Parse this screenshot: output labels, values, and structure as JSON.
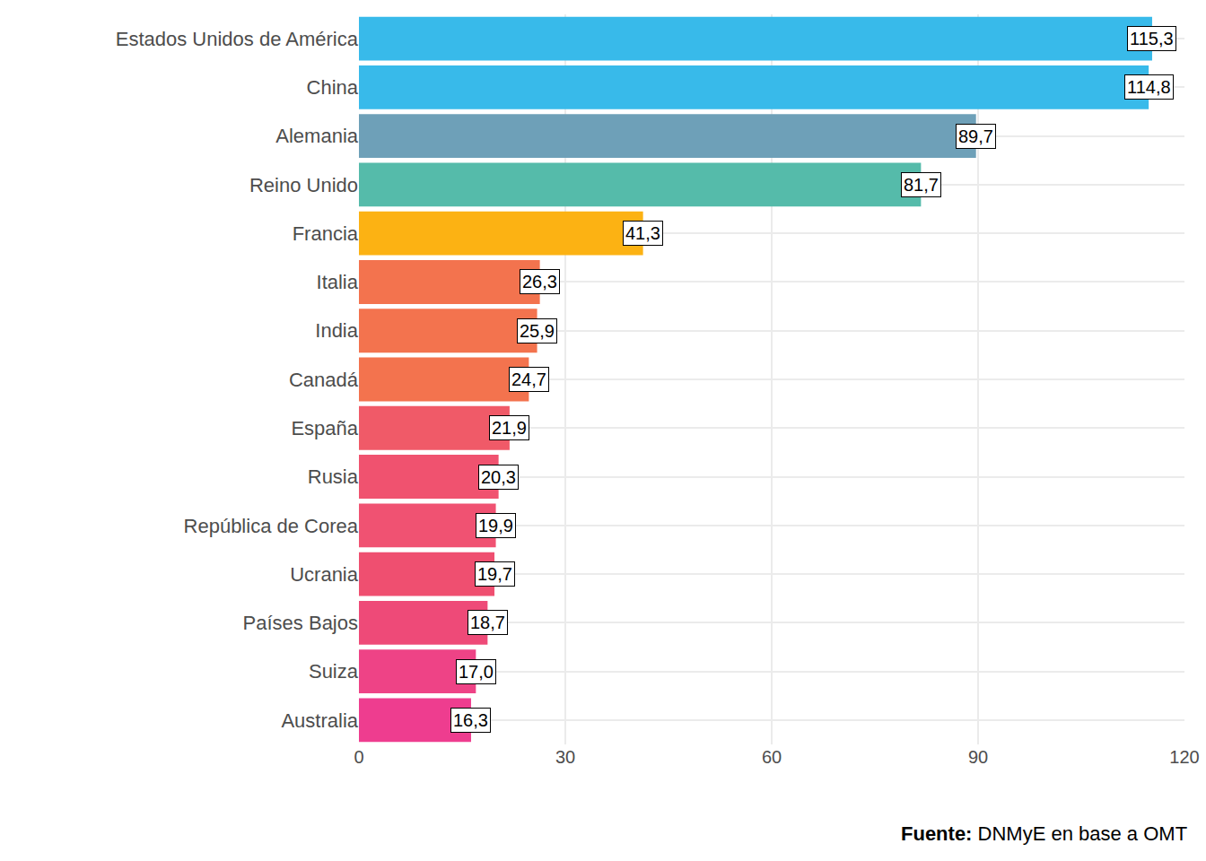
{
  "chart_data": {
    "type": "bar",
    "orientation": "horizontal",
    "categories": [
      "Estados Unidos de América",
      "China",
      "Alemania",
      "Reino Unido",
      "Francia",
      "Italia",
      "India",
      "Canadá",
      "España",
      "Rusia",
      "República de Corea",
      "Ucrania",
      "Países Bajos",
      "Suiza",
      "Australia"
    ],
    "values": [
      115.3,
      114.8,
      89.7,
      81.7,
      41.3,
      26.3,
      25.9,
      24.7,
      21.9,
      20.3,
      19.9,
      19.7,
      18.7,
      17.0,
      16.3
    ],
    "value_labels": [
      "115,3",
      "114,8",
      "89,7",
      "81,7",
      "41,3",
      "26,3",
      "25,9",
      "24,7",
      "21,9",
      "20,3",
      "19,9",
      "19,7",
      "18,7",
      "17,0",
      "16,3"
    ],
    "colors": [
      "#38BAEA",
      "#38BAEA",
      "#6EA0B8",
      "#55BBAA",
      "#FCB213",
      "#F3734E",
      "#F3734E",
      "#F3734E",
      "#F05A68",
      "#F0526F",
      "#F05272",
      "#EF4F70",
      "#EE4A78",
      "#EE4386",
      "#EE3D8F"
    ],
    "xlim": [
      0,
      120
    ],
    "xticks": [
      0,
      30,
      60,
      90,
      120
    ],
    "grid": true,
    "data_labels": true,
    "source_label": "Fuente:",
    "source": "DNMyE en base a OMT"
  }
}
